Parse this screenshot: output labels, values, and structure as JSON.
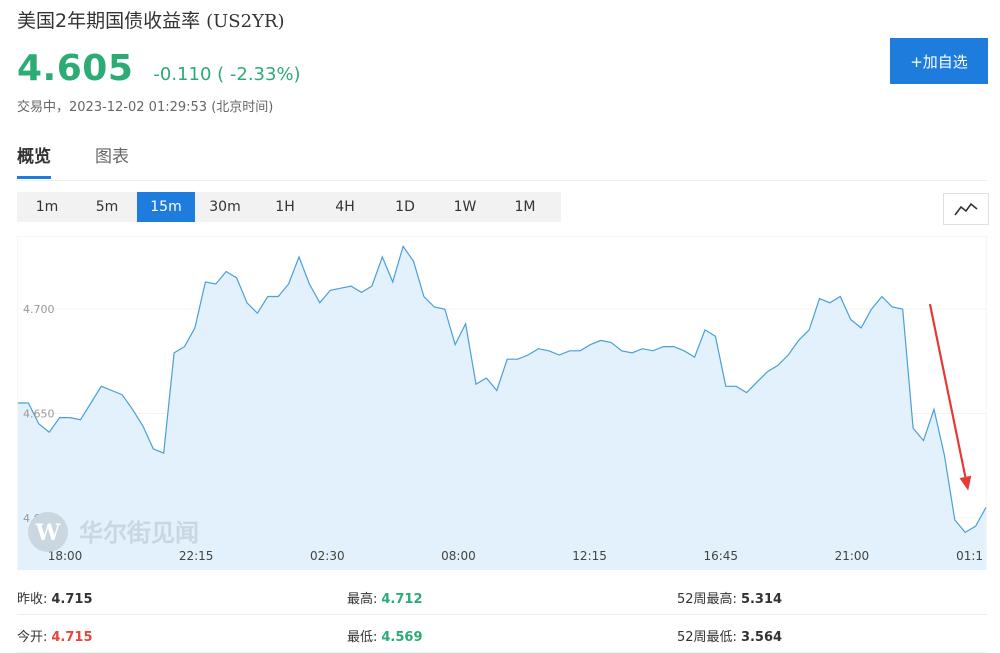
{
  "header": {
    "title": "美国2年期国债收益率",
    "code": "(US2YR)",
    "price": "4.605",
    "change": "-0.110 ( -2.33%)",
    "status": "交易中，2023-12-02 01:29:53 (北京时间)",
    "add_button": "+加自选"
  },
  "tabs": [
    {
      "label": "概览",
      "active": true
    },
    {
      "label": "图表",
      "active": false
    }
  ],
  "periods": [
    {
      "label": "1m"
    },
    {
      "label": "5m"
    },
    {
      "label": "15m",
      "active": true
    },
    {
      "label": "30m"
    },
    {
      "label": "1H"
    },
    {
      "label": "4H"
    },
    {
      "label": "1D"
    },
    {
      "label": "1W"
    },
    {
      "label": "1M"
    }
  ],
  "chart_type_icon": "line-chart-icon",
  "watermark": "华尔街见闻",
  "colors": {
    "accent": "#1e7ddc",
    "down": "#2dab74",
    "up": "#e8453c",
    "line": "#4a9fd8",
    "fill": "#e3f1fc",
    "annotation_arrow": "#e53935"
  },
  "chart_data": {
    "type": "area",
    "y_ticks": [
      "4.600",
      "4.650",
      "4.700"
    ],
    "ylim": [
      4.575,
      4.735
    ],
    "x_labels": [
      "18:00",
      "22:15",
      "02:30",
      "08:00",
      "12:15",
      "16:45",
      "21:00",
      "01:1"
    ],
    "values": [
      4.655,
      4.655,
      4.645,
      4.641,
      4.648,
      4.648,
      4.647,
      4.655,
      4.663,
      4.661,
      4.659,
      4.652,
      4.644,
      4.633,
      4.631,
      4.679,
      4.682,
      4.691,
      4.713,
      4.712,
      4.718,
      4.715,
      4.703,
      4.698,
      4.706,
      4.706,
      4.712,
      4.725,
      4.712,
      4.703,
      4.709,
      4.71,
      4.711,
      4.708,
      4.711,
      4.725,
      4.713,
      4.73,
      4.723,
      4.706,
      4.701,
      4.7,
      4.683,
      4.693,
      4.664,
      4.667,
      4.661,
      4.676,
      4.676,
      4.678,
      4.681,
      4.68,
      4.678,
      4.68,
      4.68,
      4.683,
      4.685,
      4.684,
      4.68,
      4.679,
      4.681,
      4.68,
      4.682,
      4.682,
      4.68,
      4.677,
      4.69,
      4.687,
      4.663,
      4.663,
      4.66,
      4.665,
      4.67,
      4.673,
      4.678,
      4.685,
      4.69,
      4.705,
      4.703,
      4.706,
      4.695,
      4.691,
      4.7,
      4.706,
      4.701,
      4.7,
      4.643,
      4.637,
      4.652,
      4.63,
      4.599,
      4.593,
      4.596,
      4.605
    ],
    "arrow_annotation": {
      "from_index": 88,
      "to_index": 91,
      "color": "red"
    }
  },
  "stats": [
    [
      {
        "label": "昨收:",
        "value": "4.715",
        "tone": "neutral"
      },
      {
        "label": "最高:",
        "value": "4.712",
        "tone": "down"
      },
      {
        "label": "52周最高:",
        "value": "5.314",
        "tone": "neutral"
      }
    ],
    [
      {
        "label": "今开:",
        "value": "4.715",
        "tone": "up"
      },
      {
        "label": "最低:",
        "value": "4.569",
        "tone": "down"
      },
      {
        "label": "52周最低:",
        "value": "3.564",
        "tone": "neutral"
      }
    ]
  ]
}
